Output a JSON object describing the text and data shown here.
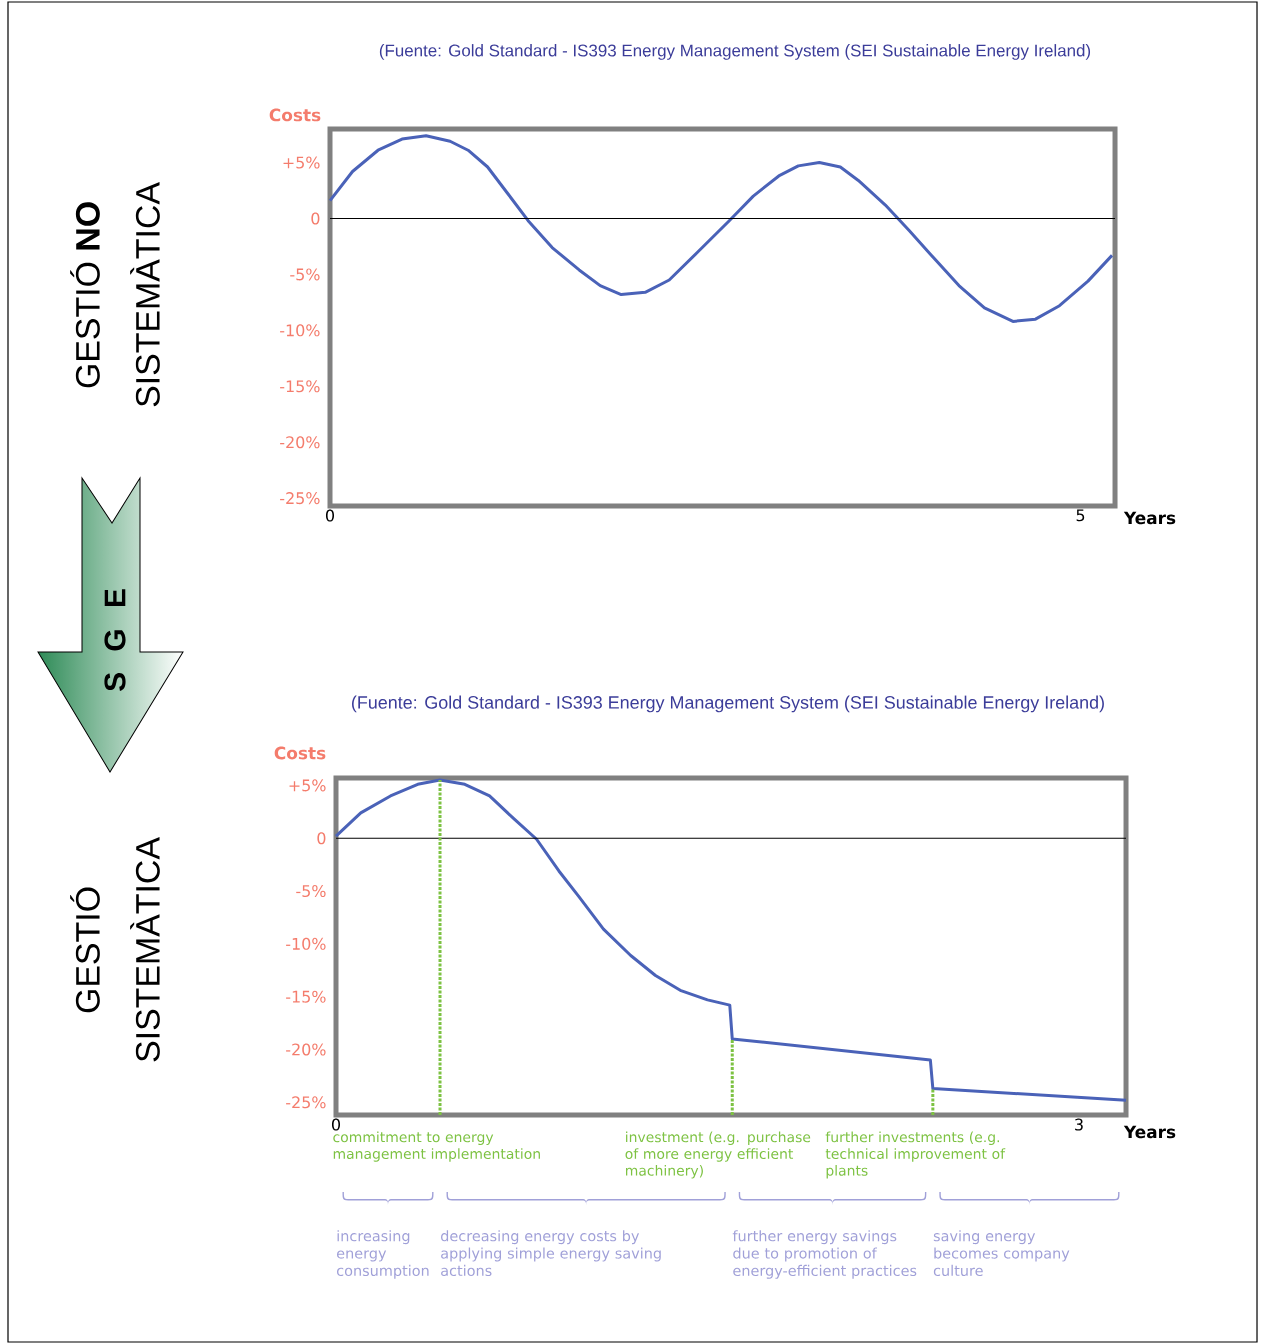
{
  "chart_data": [
    {
      "type": "line",
      "title": "(Fuente: Gold Standard - IS393 Energy Management System (SEI Sustainable Energy Ireland)",
      "xlabel": "Years",
      "ylabel": "Costs",
      "x": [
        0,
        0.15,
        0.32,
        0.48,
        0.64,
        0.8,
        0.92,
        1.05,
        1.18,
        1.32,
        1.48,
        1.66,
        1.8,
        1.94,
        2.1,
        2.26,
        2.45,
        2.66,
        2.82,
        2.99,
        3.12,
        3.26,
        3.4,
        3.52,
        3.7,
        3.86,
        4.02,
        4.19,
        4.36,
        4.55,
        4.7,
        4.86,
        5.05,
        5.21
      ],
      "series": [
        {
          "color": "#4a62b8",
          "values": [
            1.6,
            4.2,
            6.1,
            7.1,
            7.4,
            6.9,
            6.1,
            4.6,
            2.3,
            -0.2,
            -2.6,
            -4.6,
            -6.0,
            -6.8,
            -6.6,
            -5.5,
            -3.0,
            -0.2,
            2.0,
            3.8,
            4.7,
            5.0,
            4.6,
            3.4,
            1.2,
            -1.1,
            -3.5,
            -6.0,
            -8.0,
            -9.2,
            -9.0,
            -7.8,
            -5.6,
            -3.3
          ]
        }
      ],
      "xlim": [
        0,
        5.23
      ],
      "ylim": [
        -25.7,
        8
      ],
      "xticks": [
        0,
        5
      ],
      "yticks": [
        {
          "value": 5,
          "label": "+5%"
        },
        0,
        {
          "value": -5,
          "label": "-5%"
        },
        {
          "value": -10,
          "label": "-10%"
        },
        {
          "value": -15,
          "label": "-15%"
        },
        {
          "value": -20,
          "label": "-20%"
        },
        {
          "value": -25,
          "label": "-25%"
        }
      ],
      "ref_lines": [
        {
          "axis": "y",
          "value": 0,
          "color": "#000000",
          "line_style": "solid"
        }
      ],
      "annotations": [
        "GESTIÓ **NO**",
        "SISTEMÀTICA"
      ]
    },
    {
      "type": "line",
      "title": "(Fuente: Gold Standard - IS393 Energy Management System (SEI Sustainable Energy Ireland)",
      "xlabel": "Years",
      "ylabel": "Costs",
      "x": [
        0,
        0.1,
        0.22,
        0.33,
        0.42,
        0.52,
        0.62,
        0.72,
        0.81,
        0.9,
        0.98,
        1.08,
        1.19,
        1.29,
        1.39,
        1.5,
        1.59,
        1.6,
        2.4,
        2.41,
        3.19
      ],
      "series": [
        {
          "color": "#4a62b8",
          "values": [
            0.2,
            2.4,
            4.0,
            5.1,
            5.5,
            5.1,
            4.0,
            1.8,
            -0.1,
            -3.1,
            -5.5,
            -8.6,
            -11.1,
            -13.0,
            -14.4,
            -15.3,
            -15.8,
            -19.0,
            -21.0,
            -23.7,
            -24.8
          ]
        }
      ],
      "xlim": [
        0,
        3.19
      ],
      "ylim": [
        -26.2,
        5.7
      ],
      "xticks": [
        0,
        3
      ],
      "yticks": [
        {
          "value": 5,
          "label": "+5%"
        },
        0,
        {
          "value": -5,
          "label": "-5%"
        },
        {
          "value": -10,
          "label": "-10%"
        },
        {
          "value": -15,
          "label": "-15%"
        },
        {
          "value": -20,
          "label": "-20%"
        },
        {
          "value": -25,
          "label": "-25%"
        }
      ],
      "ref_lines": [
        {
          "axis": "y",
          "value": 0,
          "color": "#000000",
          "line_style": "solid"
        },
        {
          "axis": "x",
          "value": 0.42,
          "label": "commitment to energy management implementation",
          "color": "#7dc242",
          "line_style": "dashed"
        },
        {
          "axis": "x",
          "value": 1.6,
          "label": "investment (e.g. purchase of more energy efficient machinery)",
          "color": "#7dc242",
          "line_style": "dashed"
        },
        {
          "axis": "x",
          "value": 2.41,
          "label": "further investments (e.g. technical improvement of plants",
          "color": "#7dc242",
          "line_style": "dashed"
        }
      ],
      "annotations": [
        "S G E",
        "GESTIÓ",
        "SISTEMÀTICA",
        "increasing energy consumption",
        "decreasing energy costs by applying simple energy saving actions",
        "further energy savings due to promotion of energy-efficient practices",
        "saving energy becomes company culture"
      ]
    }
  ]
}
